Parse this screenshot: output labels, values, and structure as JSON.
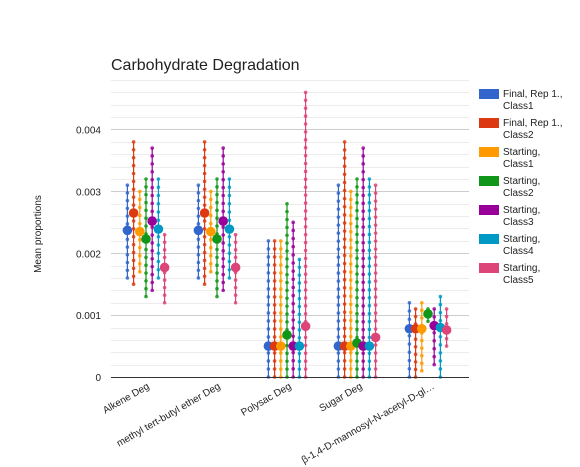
{
  "chart_data": {
    "type": "scatter",
    "title": "Carbohydrate Degradation",
    "xlabel": "",
    "ylabel": "Mean proportions",
    "ylim": [
      0,
      0.0048
    ],
    "yticks": [
      0,
      0.001,
      0.002,
      0.003,
      0.004
    ],
    "ytick_labels": [
      "0",
      "0.001",
      "0.002",
      "0.003",
      "0.004"
    ],
    "grid": true,
    "legend_position": "right",
    "categories": [
      "Alkene Deg",
      "methyl tert-butyl ether Deg",
      "Polysac Deg",
      "Sugar Deg",
      "β-1,4-D-mannosyl-N-acetyl-D-gl…"
    ],
    "series": [
      {
        "name": "Final, Rep 1., Class1",
        "color": "#3366cc",
        "means": [
          0.00237,
          0.00237,
          0.0005,
          0.0005,
          0.00078
        ],
        "ranges": [
          [
            0.0016,
            0.0031
          ],
          [
            0.0016,
            0.0031
          ],
          [
            0.0,
            0.0022
          ],
          [
            0.0,
            0.0031
          ],
          [
            0.0,
            0.0012
          ]
        ]
      },
      {
        "name": "Final, Rep 1., Class2",
        "color": "#dc3912",
        "means": [
          0.00265,
          0.00265,
          0.0005,
          0.0005,
          0.00078
        ],
        "ranges": [
          [
            0.0015,
            0.0038
          ],
          [
            0.0015,
            0.0038
          ],
          [
            0.0,
            0.0022
          ],
          [
            0.0,
            0.0038
          ],
          [
            0.0,
            0.0011
          ]
        ]
      },
      {
        "name": "Starting, Class1",
        "color": "#ff9900",
        "means": [
          0.00235,
          0.00235,
          0.0005,
          0.0005,
          0.00078
        ],
        "ranges": [
          [
            0.0017,
            0.003
          ],
          [
            0.0017,
            0.003
          ],
          [
            0.0,
            0.0022
          ],
          [
            0.0,
            0.003
          ],
          [
            0.0001,
            0.0012
          ]
        ]
      },
      {
        "name": "Starting, Class2",
        "color": "#109618",
        "means": [
          0.00223,
          0.00223,
          0.00068,
          0.00055,
          0.00102
        ],
        "ranges": [
          [
            0.0013,
            0.0032
          ],
          [
            0.0013,
            0.0032
          ],
          [
            0.0,
            0.0028
          ],
          [
            0.0,
            0.0032
          ],
          [
            0.0009,
            0.0011
          ]
        ]
      },
      {
        "name": "Starting, Class3",
        "color": "#990099",
        "means": [
          0.00252,
          0.00252,
          0.0005,
          0.0005,
          0.00083
        ],
        "ranges": [
          [
            0.0014,
            0.0037
          ],
          [
            0.0014,
            0.0037
          ],
          [
            0.0,
            0.0025
          ],
          [
            0.0,
            0.0037
          ],
          [
            0.0002,
            0.0011
          ]
        ]
      },
      {
        "name": "Starting, Class4",
        "color": "#0099c6",
        "means": [
          0.00239,
          0.00239,
          0.0005,
          0.0005,
          0.0008
        ],
        "ranges": [
          [
            0.0016,
            0.0032
          ],
          [
            0.0016,
            0.0032
          ],
          [
            0.0,
            0.0019
          ],
          [
            0.0,
            0.0032
          ],
          [
            0.0,
            0.0013
          ]
        ]
      },
      {
        "name": "Starting, Class5",
        "color": "#dd4477",
        "means": [
          0.00177,
          0.00177,
          0.00082,
          0.00064,
          0.00076
        ],
        "ranges": [
          [
            0.0012,
            0.0023
          ],
          [
            0.0012,
            0.0023
          ],
          [
            0.0,
            0.0046
          ],
          [
            0.0,
            0.0031
          ],
          [
            0.0005,
            0.0011
          ]
        ]
      }
    ]
  },
  "legend": {
    "items": [
      {
        "line1": "Final, Rep 1.,",
        "line2": "Class1"
      },
      {
        "line1": "Final, Rep 1.,",
        "line2": "Class2"
      },
      {
        "line1": "Starting,",
        "line2": "Class1"
      },
      {
        "line1": "Starting,",
        "line2": "Class2"
      },
      {
        "line1": "Starting,",
        "line2": "Class3"
      },
      {
        "line1": "Starting,",
        "line2": "Class4"
      },
      {
        "line1": "Starting,",
        "line2": "Class5"
      }
    ]
  }
}
